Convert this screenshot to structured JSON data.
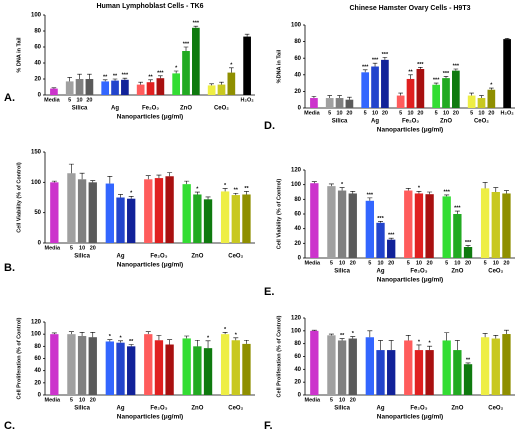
{
  "chart_data": [
    {
      "type": "bar",
      "panel": "A.",
      "title": "Human Lymphoblast Cells - TK6",
      "ylabel": "% DNA in Tail",
      "xlabel": "Nanoparticles (μg/ml)",
      "groups": [
        "Silica",
        "Ag",
        "Fe₂O₃",
        "ZnO",
        "CeO₂"
      ],
      "categories": [
        "Media",
        "5",
        "10",
        "20",
        null,
        null,
        null,
        null,
        null,
        null,
        null,
        null,
        null,
        null,
        null,
        null,
        "H₂O₂"
      ],
      "values": [
        8,
        17,
        20,
        20,
        17,
        18,
        19,
        13,
        16,
        21,
        27,
        55,
        84,
        12,
        13,
        28,
        73
      ],
      "errors": [
        1,
        5,
        6,
        6,
        2,
        2,
        2,
        3,
        3,
        3,
        3,
        5,
        2,
        2,
        3,
        6,
        3
      ],
      "stars": [
        null,
        null,
        null,
        null,
        "**",
        "**",
        "***",
        null,
        "**",
        "***",
        "*",
        "***",
        "***",
        null,
        null,
        "*",
        null
      ],
      "colors": [
        "#cc33cc",
        "#a0a0a0",
        "#808080",
        "#5a5a5a",
        "#3366ff",
        "#2244cc",
        "#112299",
        "#ff5c5c",
        "#e02020",
        "#a81010",
        "#33dd33",
        "#22aa22",
        "#0f7a0f",
        "#eeee44",
        "#c8c820",
        "#8f8f00",
        "#000000"
      ],
      "ylim": [
        0,
        100
      ],
      "yticks": [
        0,
        20,
        40,
        60,
        80,
        100
      ]
    },
    {
      "type": "bar",
      "panel": "B.",
      "ylabel": "Cell Viability (% of Control)",
      "xlabel": "Nanoparticles (μg/ml)",
      "groups": [
        "Silica",
        "Ag",
        "Fe₂O₃",
        "ZnO",
        "CeO₂"
      ],
      "categories": [
        "Media",
        "5",
        "10",
        "20",
        null,
        null,
        null,
        null,
        null,
        null,
        null,
        null,
        null,
        null,
        null,
        null
      ],
      "values": [
        100,
        115,
        105,
        100,
        98,
        75,
        73,
        105,
        107,
        110,
        97,
        80,
        72,
        85,
        79,
        80
      ],
      "errors": [
        2,
        15,
        10,
        3,
        12,
        5,
        4,
        6,
        5,
        6,
        5,
        4,
        4,
        5,
        3,
        5
      ],
      "stars": [
        null,
        null,
        null,
        null,
        null,
        null,
        "*",
        null,
        null,
        null,
        null,
        "*",
        null,
        "*",
        "**",
        "**"
      ],
      "colors": [
        "#cc33cc",
        "#a0a0a0",
        "#808080",
        "#5a5a5a",
        "#3366ff",
        "#2244cc",
        "#112299",
        "#ff5c5c",
        "#e02020",
        "#a81010",
        "#33dd33",
        "#22aa22",
        "#0f7a0f",
        "#eeee44",
        "#c8c820",
        "#8f8f00"
      ],
      "ylim": [
        0,
        150
      ],
      "yticks": [
        0,
        50,
        100,
        150
      ]
    },
    {
      "type": "bar",
      "panel": "C.",
      "ylabel": "Cell Proliferation (% of Control)",
      "xlabel": "Nanoparticles (μg/ml)",
      "groups": [
        "Silica",
        "Ag",
        "Fe₂O₃",
        "ZnO",
        "CeO₂"
      ],
      "categories": [
        "Media",
        "5",
        "10",
        "20",
        null,
        null,
        null,
        null,
        null,
        null,
        null,
        null,
        null,
        null,
        null,
        null
      ],
      "values": [
        100,
        100,
        97,
        95,
        88,
        86,
        80,
        100,
        90,
        83,
        93,
        80,
        77,
        100,
        90,
        84
      ],
      "errors": [
        2,
        4,
        6,
        8,
        3,
        3,
        3,
        4,
        8,
        8,
        4,
        10,
        12,
        3,
        4,
        6
      ],
      "stars": [
        null,
        null,
        null,
        null,
        "*",
        "*",
        "**",
        null,
        null,
        null,
        null,
        null,
        "*",
        "*",
        "*",
        null
      ],
      "colors": [
        "#cc33cc",
        "#a0a0a0",
        "#808080",
        "#5a5a5a",
        "#3366ff",
        "#2244cc",
        "#112299",
        "#ff5c5c",
        "#e02020",
        "#a81010",
        "#33dd33",
        "#22aa22",
        "#0f7a0f",
        "#eeee44",
        "#c8c820",
        "#8f8f00"
      ],
      "ylim": [
        0,
        120
      ],
      "yticks": [
        0,
        20,
        40,
        60,
        80,
        100,
        120
      ]
    },
    {
      "type": "bar",
      "panel": "D.",
      "title": "Chinese Hamster Ovary Cells - H9T3",
      "ylabel": "%DNA in Tail",
      "xlabel": "Nanoparticles (μg/ml)",
      "groups": [
        "Silica",
        "Ag",
        "Fe₂O₃",
        "ZnO",
        "CeO₂"
      ],
      "categories": [
        "Media",
        "5",
        "10",
        "20",
        "5",
        "10",
        "20",
        "5",
        "10",
        "20",
        "5",
        "10",
        "20",
        "5",
        "10",
        "20",
        "H₂O₂"
      ],
      "values": [
        12,
        12,
        12,
        10,
        43,
        50,
        58,
        15,
        35,
        47,
        28,
        36,
        45,
        15,
        12,
        22,
        83
      ],
      "errors": [
        2,
        3,
        3,
        3,
        3,
        4,
        3,
        3,
        5,
        2,
        2,
        2,
        2,
        3,
        3,
        2,
        1
      ],
      "stars": [
        null,
        null,
        null,
        null,
        "***",
        "***",
        "***",
        null,
        "**",
        "***",
        "***",
        "***",
        "***",
        null,
        null,
        "*",
        null
      ],
      "colors": [
        "#cc33cc",
        "#a0a0a0",
        "#808080",
        "#5a5a5a",
        "#3366ff",
        "#2244cc",
        "#112299",
        "#ff5c5c",
        "#e02020",
        "#a81010",
        "#33dd33",
        "#22aa22",
        "#0f7a0f",
        "#eeee44",
        "#c8c820",
        "#8f8f00",
        "#000000"
      ],
      "ylim": [
        0,
        100
      ],
      "yticks": [
        0,
        20,
        40,
        60,
        80,
        100
      ]
    },
    {
      "type": "bar",
      "panel": "E.",
      "ylabel": "Cell Viability (% of Control)",
      "xlabel": "Nanoparticles (μg/ml)",
      "groups": [
        "Silica",
        "Ag",
        "Fe₂O₃",
        "ZnO",
        "CeO₂"
      ],
      "categories": [
        "Media",
        "5",
        "10",
        "20",
        "5",
        "10",
        "20",
        "5",
        "10",
        "20",
        "5",
        "10",
        "20",
        "5",
        "10",
        "20"
      ],
      "values": [
        102,
        98,
        92,
        88,
        78,
        48,
        25,
        92,
        88,
        87,
        84,
        60,
        15,
        95,
        90,
        88
      ],
      "errors": [
        2,
        3,
        4,
        3,
        4,
        2,
        2,
        3,
        3,
        3,
        2,
        4,
        2,
        8,
        6,
        4
      ],
      "stars": [
        null,
        null,
        "*",
        null,
        "***",
        "***",
        "***",
        null,
        "*",
        null,
        "***",
        "***",
        "***",
        null,
        null,
        null
      ],
      "colors": [
        "#cc33cc",
        "#a0a0a0",
        "#808080",
        "#5a5a5a",
        "#3366ff",
        "#2244cc",
        "#112299",
        "#ff5c5c",
        "#e02020",
        "#a81010",
        "#33dd33",
        "#22aa22",
        "#0f7a0f",
        "#eeee44",
        "#c8c820",
        "#8f8f00"
      ],
      "ylim": [
        0,
        120
      ],
      "yticks": [
        0,
        20,
        40,
        60,
        80,
        100,
        120
      ]
    },
    {
      "type": "bar",
      "panel": "F.",
      "ylabel": "Cell Proliferation (% of Control)",
      "xlabel": "Nanoparticles (μg/ml)",
      "groups": [
        "Silica",
        "Ag",
        "Fe₂O₃",
        "ZnO",
        "CeO₂"
      ],
      "categories": [
        "Media",
        "5",
        "10",
        "20",
        null,
        null,
        null,
        null,
        null,
        null,
        null,
        null,
        null,
        null,
        null,
        null
      ],
      "values": [
        100,
        93,
        85,
        88,
        90,
        70,
        70,
        85,
        70,
        70,
        85,
        70,
        48,
        90,
        88,
        95
      ],
      "errors": [
        1,
        2,
        3,
        3,
        10,
        15,
        15,
        8,
        8,
        6,
        12,
        15,
        2,
        6,
        5,
        6
      ],
      "stars": [
        null,
        null,
        "**",
        "*",
        null,
        null,
        null,
        null,
        "*",
        "*",
        null,
        null,
        "**",
        null,
        null,
        null
      ],
      "colors": [
        "#cc33cc",
        "#a0a0a0",
        "#808080",
        "#5a5a5a",
        "#3366ff",
        "#2244cc",
        "#112299",
        "#ff5c5c",
        "#e02020",
        "#a81010",
        "#33dd33",
        "#22aa22",
        "#0f7a0f",
        "#eeee44",
        "#c8c820",
        "#8f8f00"
      ],
      "ylim": [
        0,
        120
      ],
      "yticks": [
        0,
        20,
        40,
        60,
        80,
        100,
        120
      ]
    }
  ]
}
